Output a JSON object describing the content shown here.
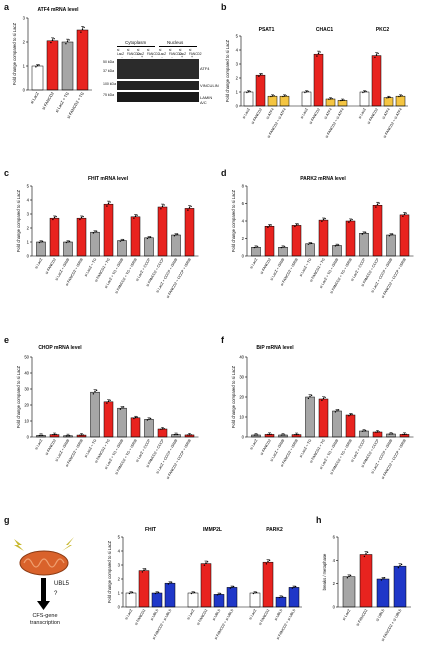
{
  "colors": {
    "grey": "#a6a6a6",
    "red": "#e8231f",
    "yellow": "#f4c542",
    "white": "#ffffff",
    "blue": "#1f37c8",
    "axis": "#000000",
    "star": "#e8231f"
  },
  "panels": {
    "a": {
      "label": "a",
      "title": "ATF4 mRNA level",
      "ylabel": "Fold change compared to si LacZ",
      "ticks": [
        "0",
        "1",
        "2",
        "3"
      ],
      "ymax": 3,
      "categories": [
        "si LacZ",
        "si FANCD2",
        "si LacZ + TG",
        "si FANCD2 + TG"
      ],
      "values": [
        1.0,
        2.05,
        2.0,
        2.5
      ],
      "colors": [
        "white",
        "red",
        "grey",
        "red"
      ]
    },
    "a_blot": {
      "header_cytoplasm": "Cytoplasm",
      "header_nucleus": "Nucleus",
      "lanes_cyt": [
        "si LacZ",
        "si FANCD2",
        "si LacZ",
        "si FANCD2"
      ],
      "lanes_nuc": [
        "si LacZ",
        "si FANCD2",
        "si LacZ",
        "si FANCD2"
      ],
      "tg_row": [
        "-",
        "-",
        "+",
        "+",
        "-",
        "-",
        "+",
        "+"
      ],
      "mw": [
        "50 kDa",
        "37 kDa",
        "100 kDa",
        "75 kDa"
      ],
      "bands": [
        "ATF4",
        "VINCULIN",
        "LAMIN A/C"
      ]
    },
    "b": {
      "label": "b",
      "ylabel": "Fold change compared to si LacZ",
      "ticks": [
        "0",
        "1",
        "2",
        "3",
        "4",
        "5"
      ],
      "ymax": 5,
      "groups": [
        {
          "title": "PSAT1",
          "categories": [
            "si LacZ",
            "si FANCD2",
            "si ATF4",
            "si FANCD2 + si ATF4"
          ],
          "values": [
            1.0,
            2.2,
            0.7,
            0.7
          ],
          "colors": [
            "white",
            "red",
            "yellow",
            "yellow"
          ]
        },
        {
          "title": "CHAC1",
          "categories": [
            "si LacZ",
            "si FANCD2",
            "si ATF4",
            "si FANCD2 + si ATF4"
          ],
          "values": [
            1.0,
            3.7,
            0.5,
            0.4
          ],
          "colors": [
            "white",
            "red",
            "yellow",
            "yellow"
          ]
        },
        {
          "title": "PKC2",
          "categories": [
            "si LacZ",
            "si FANCD2",
            "si ATF4",
            "si FANCD2 + si ATF4"
          ],
          "values": [
            1.0,
            3.6,
            0.6,
            0.7
          ],
          "colors": [
            "white",
            "red",
            "yellow",
            "yellow"
          ]
        }
      ]
    },
    "c": {
      "label": "c",
      "title": "FHIT mRNA level",
      "ylabel": "Fold change compared to si LacZ",
      "ticks": [
        "0",
        "1",
        "2",
        "3",
        "4",
        "5"
      ],
      "ymax": 5,
      "categories": [
        "si LacZ",
        "si FANCD2",
        "si LacZ + ISRIB",
        "si FANCD2 + ISRIB",
        "si LacZ + TG",
        "si FANCD2 + TG",
        "si LacZ + TG + ISRIB",
        "si FANCD2 + TG + ISRIB",
        "si LacZ + CCCP",
        "si FANCD2 + CCCP",
        "si LacZ + CCCP + ISRIB",
        "si FANCD2 + CCCP + ISRIB"
      ],
      "values": [
        1.0,
        2.7,
        1.0,
        2.7,
        1.7,
        3.7,
        1.1,
        2.8,
        1.3,
        3.5,
        1.5,
        3.4
      ],
      "colors": [
        "grey",
        "red",
        "grey",
        "red",
        "grey",
        "red",
        "grey",
        "red",
        "grey",
        "red",
        "grey",
        "red"
      ]
    },
    "d": {
      "label": "d",
      "title": "PARK2 mRNA level",
      "ylabel": "Fold change compared to si LacZ",
      "ticks": [
        "0",
        "2",
        "4",
        "6",
        "8"
      ],
      "ymax": 8,
      "categories": [
        "si LacZ",
        "si FANCD2",
        "si LacZ + ISRIB",
        "si FANCD2 + ISRIB",
        "si LacZ + TG",
        "si FANCD2 + TG",
        "si LacZ + TG + ISRIB",
        "si FANCD2 + TG + ISRIB",
        "si LacZ + CCCP",
        "si FANCD2 + CCCP",
        "si LacZ + CCCP + ISRIB",
        "si FANCD2 + CCCP + ISRIB"
      ],
      "values": [
        1.0,
        3.4,
        1.0,
        3.5,
        1.4,
        4.1,
        1.2,
        4.0,
        2.6,
        5.8,
        2.4,
        4.7
      ],
      "colors": [
        "grey",
        "red",
        "grey",
        "red",
        "grey",
        "red",
        "grey",
        "red",
        "grey",
        "red",
        "grey",
        "red"
      ]
    },
    "e": {
      "label": "e",
      "title": "CHOP mRNA level",
      "ylabel": "Fold change compared to si LacZ",
      "ticks": [
        "0",
        "10",
        "20",
        "30",
        "40",
        "50"
      ],
      "ymax": 50,
      "categories": [
        "si LacZ",
        "si FANCD2",
        "si LacZ + ISRIB",
        "si FANCD2 + ISRIB",
        "si LacZ + TG",
        "si FANCD2 + TG",
        "si LacZ + TG + ISRIB",
        "si FANCD2 + TG + ISRIB",
        "si LacZ + CCCP",
        "si FANCD2 + CCCP",
        "si LacZ + CCCP + ISRIB",
        "si FANCD2 + CCCP + ISRIB"
      ],
      "values": [
        1.0,
        1.5,
        0.8,
        1.2,
        28,
        22,
        18,
        12,
        11,
        5,
        1.5,
        1.3
      ],
      "colors": [
        "grey",
        "red",
        "grey",
        "red",
        "grey",
        "red",
        "grey",
        "red",
        "grey",
        "red",
        "grey",
        "red"
      ]
    },
    "f": {
      "label": "f",
      "title": "BiP mRNA level",
      "ylabel": "Fold change compared to si LacZ",
      "ticks": [
        "0",
        "10",
        "20",
        "30",
        "40"
      ],
      "ymax": 40,
      "categories": [
        "si LacZ",
        "si FANCD2",
        "si LacZ + ISRIB",
        "si FANCD2 + ISRIB",
        "si LacZ + TG",
        "si FANCD2 + TG",
        "si LacZ + TG + ISRIB",
        "si FANCD2 + TG + ISRIB",
        "si LacZ + CCCP",
        "si FANCD2 + CCCP",
        "si LacZ + CCCP + ISRIB",
        "si FANCD2 + CCCP + ISRIB"
      ],
      "values": [
        1.0,
        1.3,
        1.0,
        1.2,
        20,
        19,
        13,
        11,
        3,
        2.5,
        1.5,
        1.3
      ],
      "colors": [
        "grey",
        "red",
        "grey",
        "red",
        "grey",
        "red",
        "grey",
        "red",
        "grey",
        "red",
        "grey",
        "red"
      ]
    },
    "g": {
      "label": "g",
      "ylabel": "Fold change compared to si LacZ",
      "ticks": [
        "0",
        "1",
        "2",
        "3",
        "4",
        "5"
      ],
      "ymax": 5,
      "groups": [
        {
          "title": "FHIT",
          "categories": [
            "si LacZ",
            "si FANCD2",
            "si UBL5",
            "si FANCD2 + si UBL5"
          ],
          "values": [
            1.0,
            2.6,
            1.0,
            1.7
          ],
          "colors": [
            "white",
            "red",
            "blue",
            "blue"
          ]
        },
        {
          "title": "IMMP2L",
          "categories": [
            "si LacZ",
            "si FANCD2",
            "si UBL5",
            "si FANCD2 + si UBL5"
          ],
          "values": [
            1.0,
            3.1,
            0.9,
            1.4
          ],
          "colors": [
            "white",
            "red",
            "blue",
            "blue"
          ]
        },
        {
          "title": "PARK2",
          "categories": [
            "si LacZ",
            "si FANCD2",
            "si UBL5",
            "si FANCD2 + si UBL5"
          ],
          "values": [
            1.0,
            3.2,
            0.7,
            1.4
          ],
          "colors": [
            "white",
            "red",
            "blue",
            "blue"
          ]
        }
      ],
      "diagram": {
        "gene": "UBL5",
        "question": "?",
        "outcome": "CFS-gene transcription"
      }
    },
    "h": {
      "label": "h",
      "ylabel": "breaks / metaphase",
      "ticks": [
        "0",
        "2",
        "4",
        "6"
      ],
      "ymax": 6,
      "categories": [
        "si LacZ",
        "si FANCD2",
        "si UBL5",
        "si FANCD2 + si UBL5"
      ],
      "values": [
        2.6,
        4.5,
        2.4,
        3.5
      ],
      "colors": [
        "grey",
        "red",
        "blue",
        "blue"
      ]
    }
  }
}
